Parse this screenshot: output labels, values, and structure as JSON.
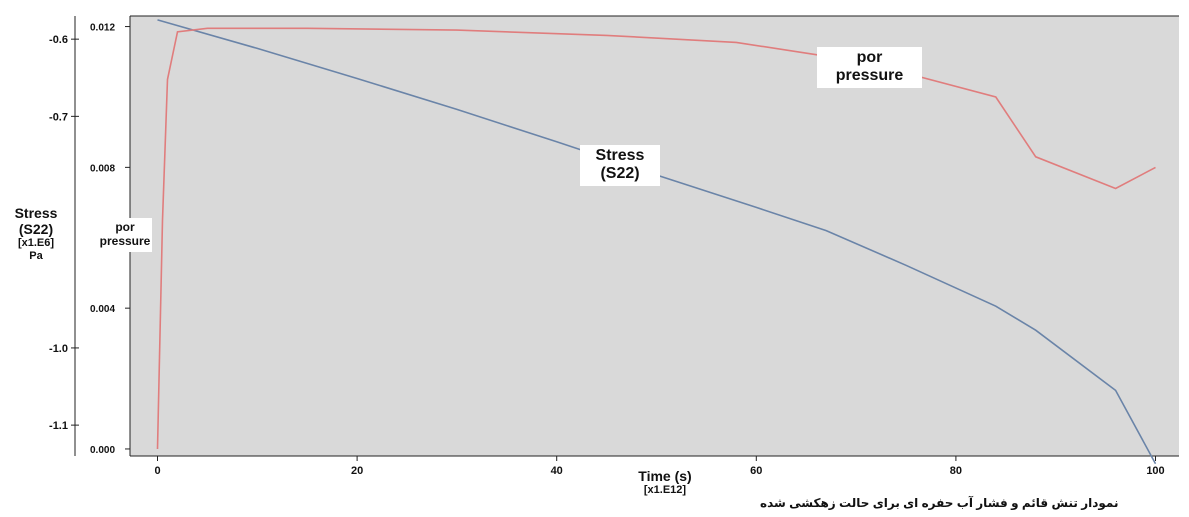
{
  "chart_data": {
    "type": "line",
    "x_label": "Time (s)",
    "x_scale_label": "[x1.E12]",
    "x_ticks": [
      0,
      20,
      40,
      60,
      80,
      100
    ],
    "xlim": [
      0,
      100
    ],
    "y_left": {
      "label_lines": [
        "Stress",
        "(S22)",
        "[x1.E6]",
        "Pa"
      ],
      "ticks": [
        "-0.6",
        "-0.7",
        "-1.0",
        "-1.1"
      ],
      "tick_values": [
        -0.6,
        -0.7,
        -1.0,
        -1.1
      ],
      "ylim": [
        -1.14,
        -0.57
      ]
    },
    "y_right": {
      "label_lines": [
        "por",
        "pressure"
      ],
      "ticks": [
        "0.012",
        "0.008",
        "0.004",
        "0.000"
      ],
      "tick_values": [
        0.012,
        0.008,
        0.004,
        0.0
      ],
      "ylim": [
        -0.0002,
        0.0123
      ]
    },
    "series": [
      {
        "name": "Stress (S22)",
        "name_lines": [
          "Stress",
          "(S22)"
        ],
        "axis": "left",
        "color": "#6a84a8",
        "x": [
          0,
          10,
          20,
          30,
          40,
          50,
          60,
          67,
          75,
          84,
          88,
          96,
          100
        ],
        "y": [
          -0.575,
          -0.612,
          -0.651,
          -0.691,
          -0.733,
          -0.776,
          -0.818,
          -0.848,
          -0.893,
          -0.946,
          -0.977,
          -1.055,
          -1.15
        ]
      },
      {
        "name": "por pressure",
        "name_lines": [
          "por",
          "pressure"
        ],
        "axis": "right",
        "color": "#e07d7d",
        "x": [
          0,
          0.5,
          1,
          2,
          5,
          15,
          30,
          45,
          58,
          66,
          72,
          84,
          88,
          96,
          100
        ],
        "y": [
          0.0,
          0.0065,
          0.0105,
          0.01185,
          0.01195,
          0.01195,
          0.0119,
          0.01175,
          0.01155,
          0.0112,
          0.0109,
          0.01,
          0.0083,
          0.0074,
          0.008
        ]
      }
    ],
    "grid": false,
    "background": "#d9d9d9"
  },
  "caption": "نمودار تنش قائم و فشار آب حفره ای برای حالت زهکشی شده"
}
